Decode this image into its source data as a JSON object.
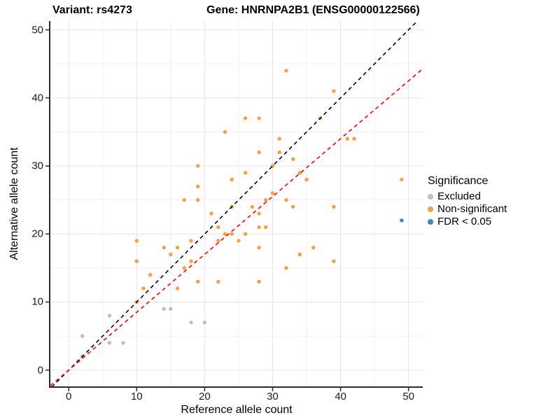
{
  "header": {
    "variant_title": "Variant: rs4273",
    "gene_title": "Gene: HNRNPA2B1 (ENSG00000122566)"
  },
  "chart_data": {
    "type": "scatter",
    "xlabel": "Reference allele count",
    "ylabel": "Alternative allele count",
    "xlim": [
      -2.7,
      52.1
    ],
    "ylim": [
      -2.5,
      51.3
    ],
    "x_ticks": [
      0,
      10,
      20,
      30,
      40,
      50
    ],
    "y_ticks": [
      0,
      10,
      20,
      30,
      40,
      50
    ],
    "x_minor_ticks": [
      5,
      15,
      25,
      35,
      45
    ],
    "y_minor_ticks": [
      5,
      15,
      25,
      35,
      45
    ],
    "grid": "major+minor",
    "point_radius": 2.7,
    "colors": {
      "grid_major": "#E4E4E4",
      "grid_minor": "#F1F1F1",
      "axis_line": "#2B2B2B",
      "identity_line": "#000000",
      "expected_line": "#FF0000"
    },
    "legend": {
      "title": "Significance",
      "position": "right",
      "items": [
        {
          "label": "Excluded",
          "color": "#BEBEBE"
        },
        {
          "label": "Non-significant",
          "color": "#F9A03C"
        },
        {
          "label": "FDR < 0.05",
          "color": "#4682B4"
        }
      ]
    },
    "reference_lines": [
      {
        "name": "identity",
        "slope": 1,
        "intercept": 0,
        "color": "#000000",
        "style": "dashed"
      },
      {
        "name": "expected-ratio",
        "slope": 0.85,
        "intercept": 0,
        "color": "#FF0000",
        "style": "dashed"
      }
    ],
    "series": [
      {
        "name": "Excluded",
        "color": "#BEBEBE",
        "points": [
          [
            2,
            2
          ],
          [
            2,
            5
          ],
          [
            6,
            4
          ],
          [
            6,
            8
          ],
          [
            8,
            4
          ],
          [
            14,
            9
          ],
          [
            15,
            9
          ],
          [
            18,
            7
          ],
          [
            20,
            7
          ]
        ]
      },
      {
        "name": "Non-significant",
        "color": "#F9A03C",
        "points": [
          [
            10,
            10
          ],
          [
            10,
            16
          ],
          [
            10,
            19
          ],
          [
            11,
            12
          ],
          [
            12,
            14
          ],
          [
            14,
            18
          ],
          [
            15,
            17
          ],
          [
            16,
            12
          ],
          [
            16,
            18
          ],
          [
            17,
            15
          ],
          [
            17,
            25
          ],
          [
            18,
            16
          ],
          [
            18,
            19
          ],
          [
            19,
            13
          ],
          [
            19,
            25
          ],
          [
            19,
            27
          ],
          [
            19,
            30
          ],
          [
            21,
            23
          ],
          [
            22,
            13
          ],
          [
            22,
            19
          ],
          [
            22,
            21
          ],
          [
            23,
            20
          ],
          [
            23,
            35
          ],
          [
            24,
            20
          ],
          [
            24,
            24
          ],
          [
            24,
            28
          ],
          [
            25,
            19
          ],
          [
            26,
            20
          ],
          [
            26,
            29
          ],
          [
            26,
            37
          ],
          [
            27,
            24
          ],
          [
            28,
            13
          ],
          [
            28,
            18
          ],
          [
            28,
            21
          ],
          [
            28,
            23
          ],
          [
            28,
            32
          ],
          [
            28,
            37
          ],
          [
            29,
            21
          ],
          [
            29,
            25
          ],
          [
            30,
            26
          ],
          [
            30,
            30
          ],
          [
            31,
            32
          ],
          [
            31,
            34
          ],
          [
            32,
            15
          ],
          [
            32,
            25
          ],
          [
            32,
            44
          ],
          [
            33,
            24
          ],
          [
            33,
            31
          ],
          [
            34,
            17
          ],
          [
            34,
            29
          ],
          [
            35,
            28
          ],
          [
            36,
            18
          ],
          [
            37,
            37
          ],
          [
            39,
            16
          ],
          [
            39,
            24
          ],
          [
            39,
            41
          ],
          [
            41,
            34
          ],
          [
            42,
            34
          ],
          [
            49,
            28
          ]
        ]
      },
      {
        "name": "FDR < 0.05",
        "color": "#4682B4",
        "points": [
          [
            49,
            22
          ]
        ]
      }
    ]
  }
}
